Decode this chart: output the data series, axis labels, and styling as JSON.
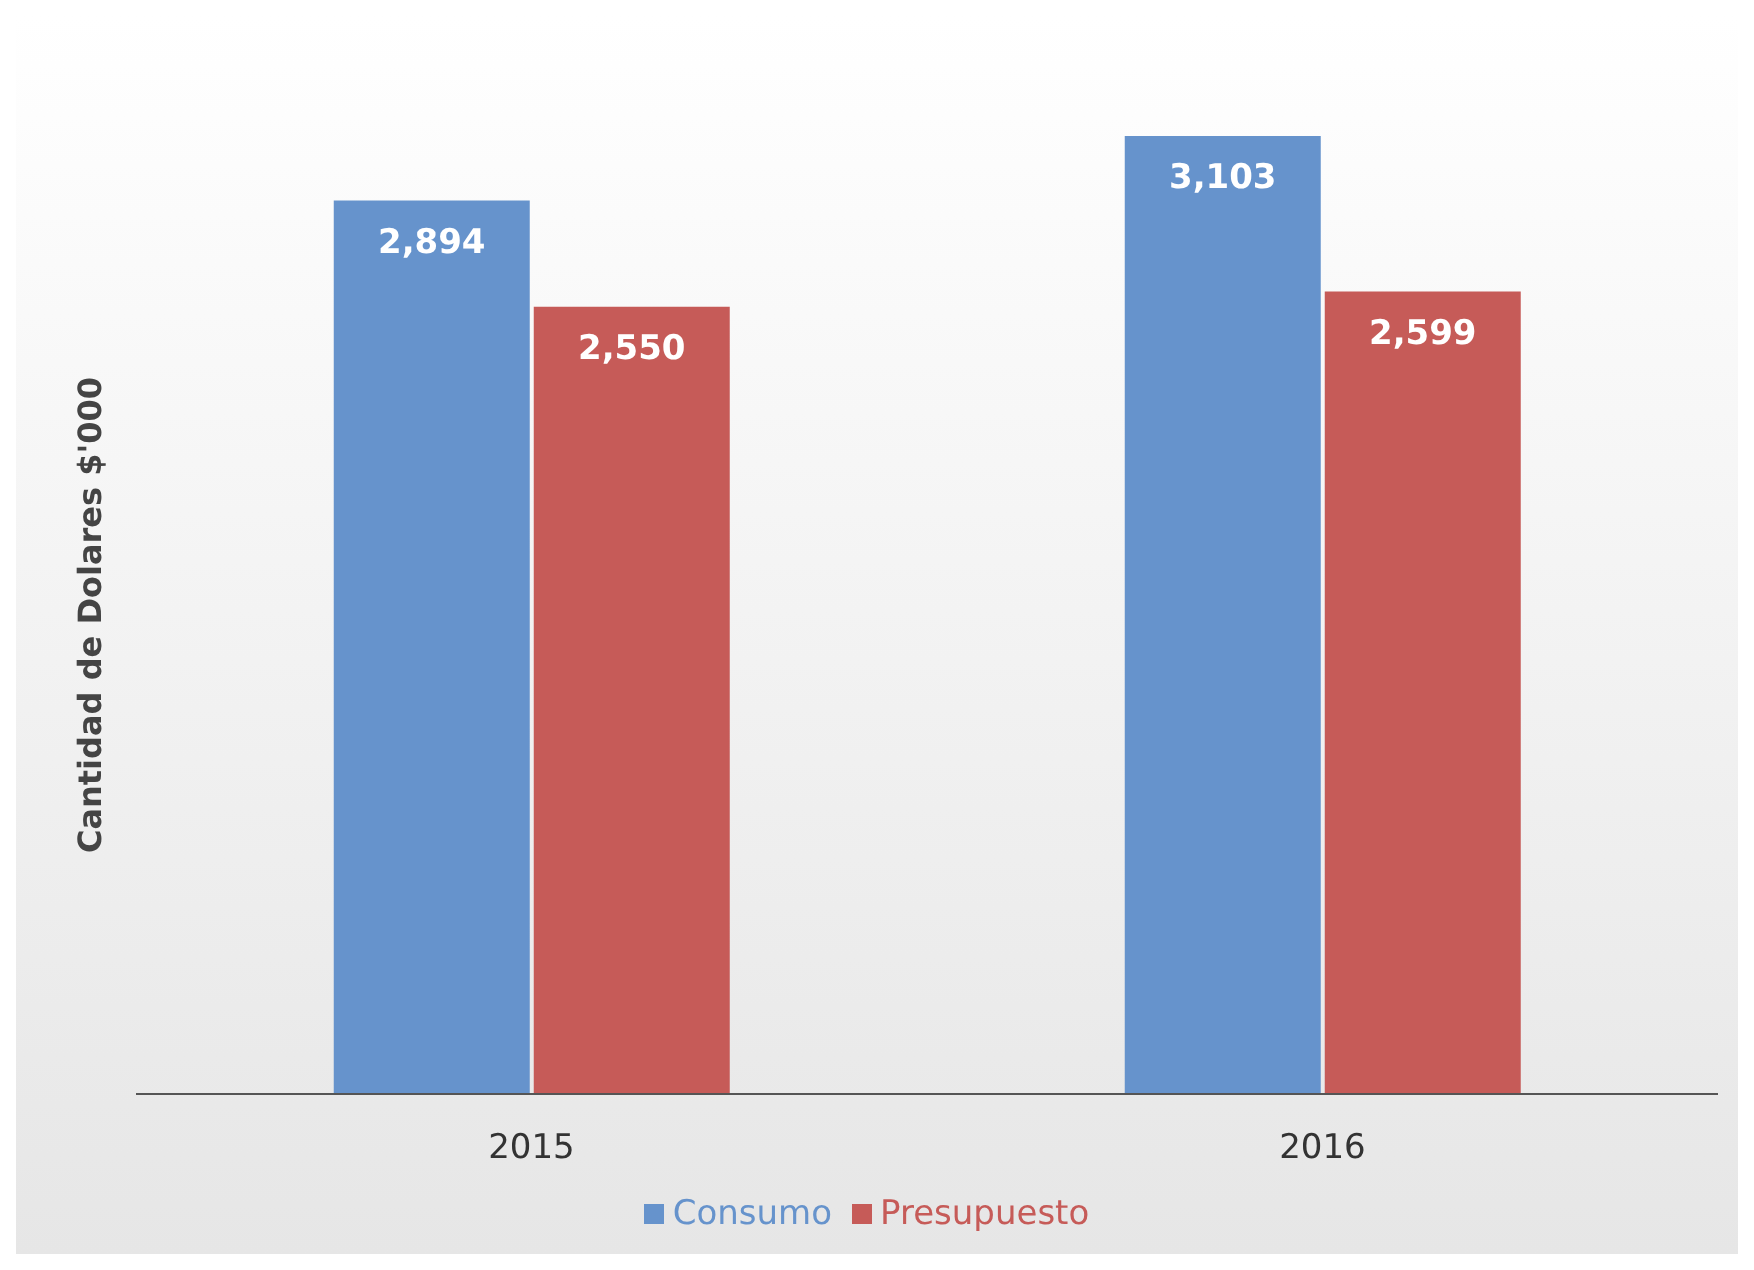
{
  "chart_data": {
    "type": "bar",
    "ylabel": "Cantidad de Dolares $'000",
    "categories": [
      "2015",
      "2016"
    ],
    "series": [
      {
        "name": "Consumo",
        "color": "#6693cc",
        "values": [
          2894,
          3103
        ],
        "value_labels": [
          "2,894",
          "3,103"
        ]
      },
      {
        "name": "Presupuesto",
        "color": "#c65b58",
        "values": [
          2550,
          2599
        ],
        "value_labels": [
          "2,550",
          "2,599"
        ]
      }
    ],
    "tick_labels": "x",
    "legend": "bottom"
  }
}
